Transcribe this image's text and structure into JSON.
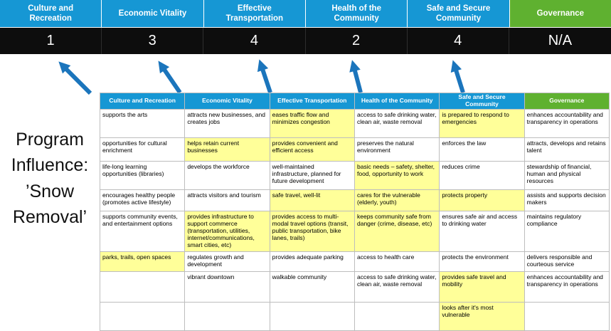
{
  "title": {
    "text": "Program\nInfluence:\n’Snow\nRemoval’"
  },
  "scoreboard": {
    "columns": [
      {
        "label": "Culture and Recreation",
        "score": "1",
        "theme": "blue"
      },
      {
        "label": "Economic Vitality",
        "score": "3",
        "theme": "blue"
      },
      {
        "label": "Effective Transportation",
        "score": "4",
        "theme": "blue"
      },
      {
        "label": "Health of the Community",
        "score": "2",
        "theme": "blue"
      },
      {
        "label": "Safe and Secure Community",
        "score": "4",
        "theme": "blue"
      },
      {
        "label": "Governance",
        "score": "N/A",
        "theme": "green"
      }
    ]
  },
  "table": {
    "columns": [
      {
        "label": "Culture and Recreation",
        "theme": "blue"
      },
      {
        "label": "Economic Vitality",
        "theme": "blue"
      },
      {
        "label": "Effective Transportation",
        "theme": "blue"
      },
      {
        "label": "Health of the Community",
        "theme": "blue"
      },
      {
        "label": "Safe and Secure Community",
        "theme": "blue"
      },
      {
        "label": "Governance",
        "theme": "green"
      }
    ],
    "rows": [
      [
        {
          "text": "supports the arts",
          "highlight": false
        },
        {
          "text": "attracts new businesses, and creates jobs",
          "highlight": false
        },
        {
          "text": "eases traffic flow and minimizes congestion",
          "highlight": true
        },
        {
          "text": "access to safe drinking water, clean air, waste removal",
          "highlight": false
        },
        {
          "text": "is prepared to respond to emergencies",
          "highlight": true
        },
        {
          "text": "enhances accountability and transparency in operations",
          "highlight": false
        }
      ],
      [
        {
          "text": "opportunities for cultural enrichment",
          "highlight": false
        },
        {
          "text": "helps retain current businesses",
          "highlight": true
        },
        {
          "text": "provides convenient and efficient access",
          "highlight": true
        },
        {
          "text": "preserves the natural environment",
          "highlight": false
        },
        {
          "text": "enforces the law",
          "highlight": false
        },
        {
          "text": "attracts, develops and retains talent",
          "highlight": false
        }
      ],
      [
        {
          "text": "life-long learning opportunities (libraries)",
          "highlight": false
        },
        {
          "text": "develops the workforce",
          "highlight": false
        },
        {
          "text": "well-maintained infrastructure, planned for future development",
          "highlight": false
        },
        {
          "text": "basic needs – safety, shelter, food, opportunity to work",
          "highlight": true
        },
        {
          "text": "reduces crime",
          "highlight": false
        },
        {
          "text": "stewardship of financial, human and physical resources",
          "highlight": false
        }
      ],
      [
        {
          "text": "encourages healthy people (promotes active lifestyle)",
          "highlight": false
        },
        {
          "text": "attracts visitors and tourism",
          "highlight": false
        },
        {
          "text": "safe travel, well-lit",
          "highlight": true
        },
        {
          "text": "cares for the vulnerable (elderly, youth)",
          "highlight": true
        },
        {
          "text": "protects property",
          "highlight": true
        },
        {
          "text": "assists and supports decision makers",
          "highlight": false
        }
      ],
      [
        {
          "text": "supports community events, and entertainment options",
          "highlight": false
        },
        {
          "text": "provides infrastructure to support commerce (transportation, utilities, internet/communications, smart cities, etc)",
          "highlight": true
        },
        {
          "text": "provides access to multi-modal travel options (transit, public transportation, bike lanes, trails)",
          "highlight": true
        },
        {
          "text": "keeps community safe from danger (crime, disease, etc)",
          "highlight": true
        },
        {
          "text": "ensures safe air and access to drinking water",
          "highlight": false
        },
        {
          "text": "maintains regulatory compliance",
          "highlight": false
        }
      ],
      [
        {
          "text": "parks, trails, open spaces",
          "highlight": true
        },
        {
          "text": "regulates growth and development",
          "highlight": false
        },
        {
          "text": "provides adequate parking",
          "highlight": false
        },
        {
          "text": "access to health care",
          "highlight": false
        },
        {
          "text": "protects the environment",
          "highlight": false
        },
        {
          "text": "delivers responsible and courteous service",
          "highlight": false
        }
      ],
      [
        {
          "text": "",
          "highlight": false
        },
        {
          "text": "vibrant downtown",
          "highlight": false
        },
        {
          "text": "walkable community",
          "highlight": false
        },
        {
          "text": "access to safe drinking water, clean air, waste removal",
          "highlight": false
        },
        {
          "text": "provides safe travel and mobility",
          "highlight": true
        },
        {
          "text": "enhances accountability and transparency in operations",
          "highlight": false
        }
      ],
      [
        {
          "text": "",
          "highlight": false
        },
        {
          "text": "",
          "highlight": false
        },
        {
          "text": "",
          "highlight": false
        },
        {
          "text": "",
          "highlight": false
        },
        {
          "text": "looks after it's most vulnerable",
          "highlight": true
        },
        {
          "text": "",
          "highlight": false
        }
      ]
    ]
  },
  "colors": {
    "header_blue": "#1697d4",
    "header_green": "#5fb130",
    "score_band_bg": "#0d0d0d",
    "score_text": "#ffffff",
    "highlight_yellow": "#ffff99",
    "arrow_blue": "#1b75bc",
    "table_border": "#bdbdbd"
  }
}
